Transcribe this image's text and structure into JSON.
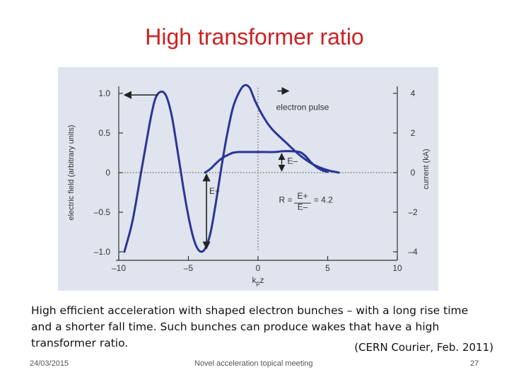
{
  "slide": {
    "title": "High transformer ratio",
    "caption": "High efficient acceleration with shaped electron bunches – with a long rise time and a shorter fall time. Such bunches can produce wakes that have a high transformer ratio.",
    "source": "(CERN Courier, Feb. 2011)",
    "footer": {
      "date": "24/03/2015",
      "meeting": "Novel acceleration topical meeting",
      "page": "27"
    }
  },
  "chart_data": {
    "type": "line",
    "xlabel": "kpz",
    "ylabel": "electric field (arbitrary units)",
    "y2label": "current (kA)",
    "xlim": [
      -10,
      10
    ],
    "ylim": [
      -1.0,
      1.0
    ],
    "y2lim": [
      -4,
      4
    ],
    "x_ticks": [
      "-10",
      "-5",
      "0",
      "5",
      "10"
    ],
    "y_ticks": [
      "1.0",
      "0.5",
      "0",
      "-0.5",
      "-1.0"
    ],
    "y2_ticks": [
      "4",
      "2",
      "0",
      "-2",
      "-4"
    ],
    "colors": {
      "curve": "#2b3595",
      "axis": "#333333",
      "background": "#dfe4ee"
    },
    "series": [
      {
        "x": [
          -9.6,
          -9.0,
          -8.4,
          -7.8,
          -7.4,
          -7.0,
          -6.6,
          -6.2,
          -5.8,
          -5.4,
          -5.0,
          -4.6,
          -4.2,
          -3.8,
          -3.4,
          -3.0,
          -2.6,
          -2.2,
          -1.8,
          -1.4,
          -1.0,
          -0.6,
          -0.2,
          0.4,
          1.0,
          2.0,
          3.0,
          4.0,
          5.0,
          5.8
        ],
        "y": [
          -1.0,
          -0.6,
          0.0,
          0.6,
          0.92,
          1.02,
          0.97,
          0.72,
          0.3,
          -0.15,
          -0.55,
          -0.85,
          -0.99,
          -0.96,
          -0.75,
          -0.35,
          0.1,
          0.5,
          0.82,
          1.0,
          1.1,
          1.07,
          0.9,
          0.7,
          0.55,
          0.38,
          0.22,
          0.1,
          0.03,
          0.0
        ]
      },
      {
        "x": [
          -3.8,
          -3.4,
          -3.0,
          -2.6,
          -2.2,
          -1.8,
          -1.4,
          -1.0,
          -0.6,
          0.0,
          0.6,
          1.2,
          1.8,
          2.4,
          3.0,
          3.4,
          3.8,
          4.2,
          4.6,
          5.0
        ],
        "y": [
          0.0,
          0.05,
          0.12,
          0.18,
          0.22,
          0.25,
          0.26,
          0.26,
          0.26,
          0.26,
          0.26,
          0.26,
          0.27,
          0.27,
          0.26,
          0.21,
          0.13,
          0.07,
          0.03,
          0.01
        ]
      }
    ],
    "annotations": [
      {
        "text": "electron pulse"
      },
      {
        "text": "E–"
      },
      {
        "text": "E+"
      },
      {
        "text": "R = E+/E– = 4.2",
        "r_label": "R =",
        "fraction_num": "E+",
        "fraction_den": "E–",
        "value": "= 4.2"
      }
    ]
  }
}
